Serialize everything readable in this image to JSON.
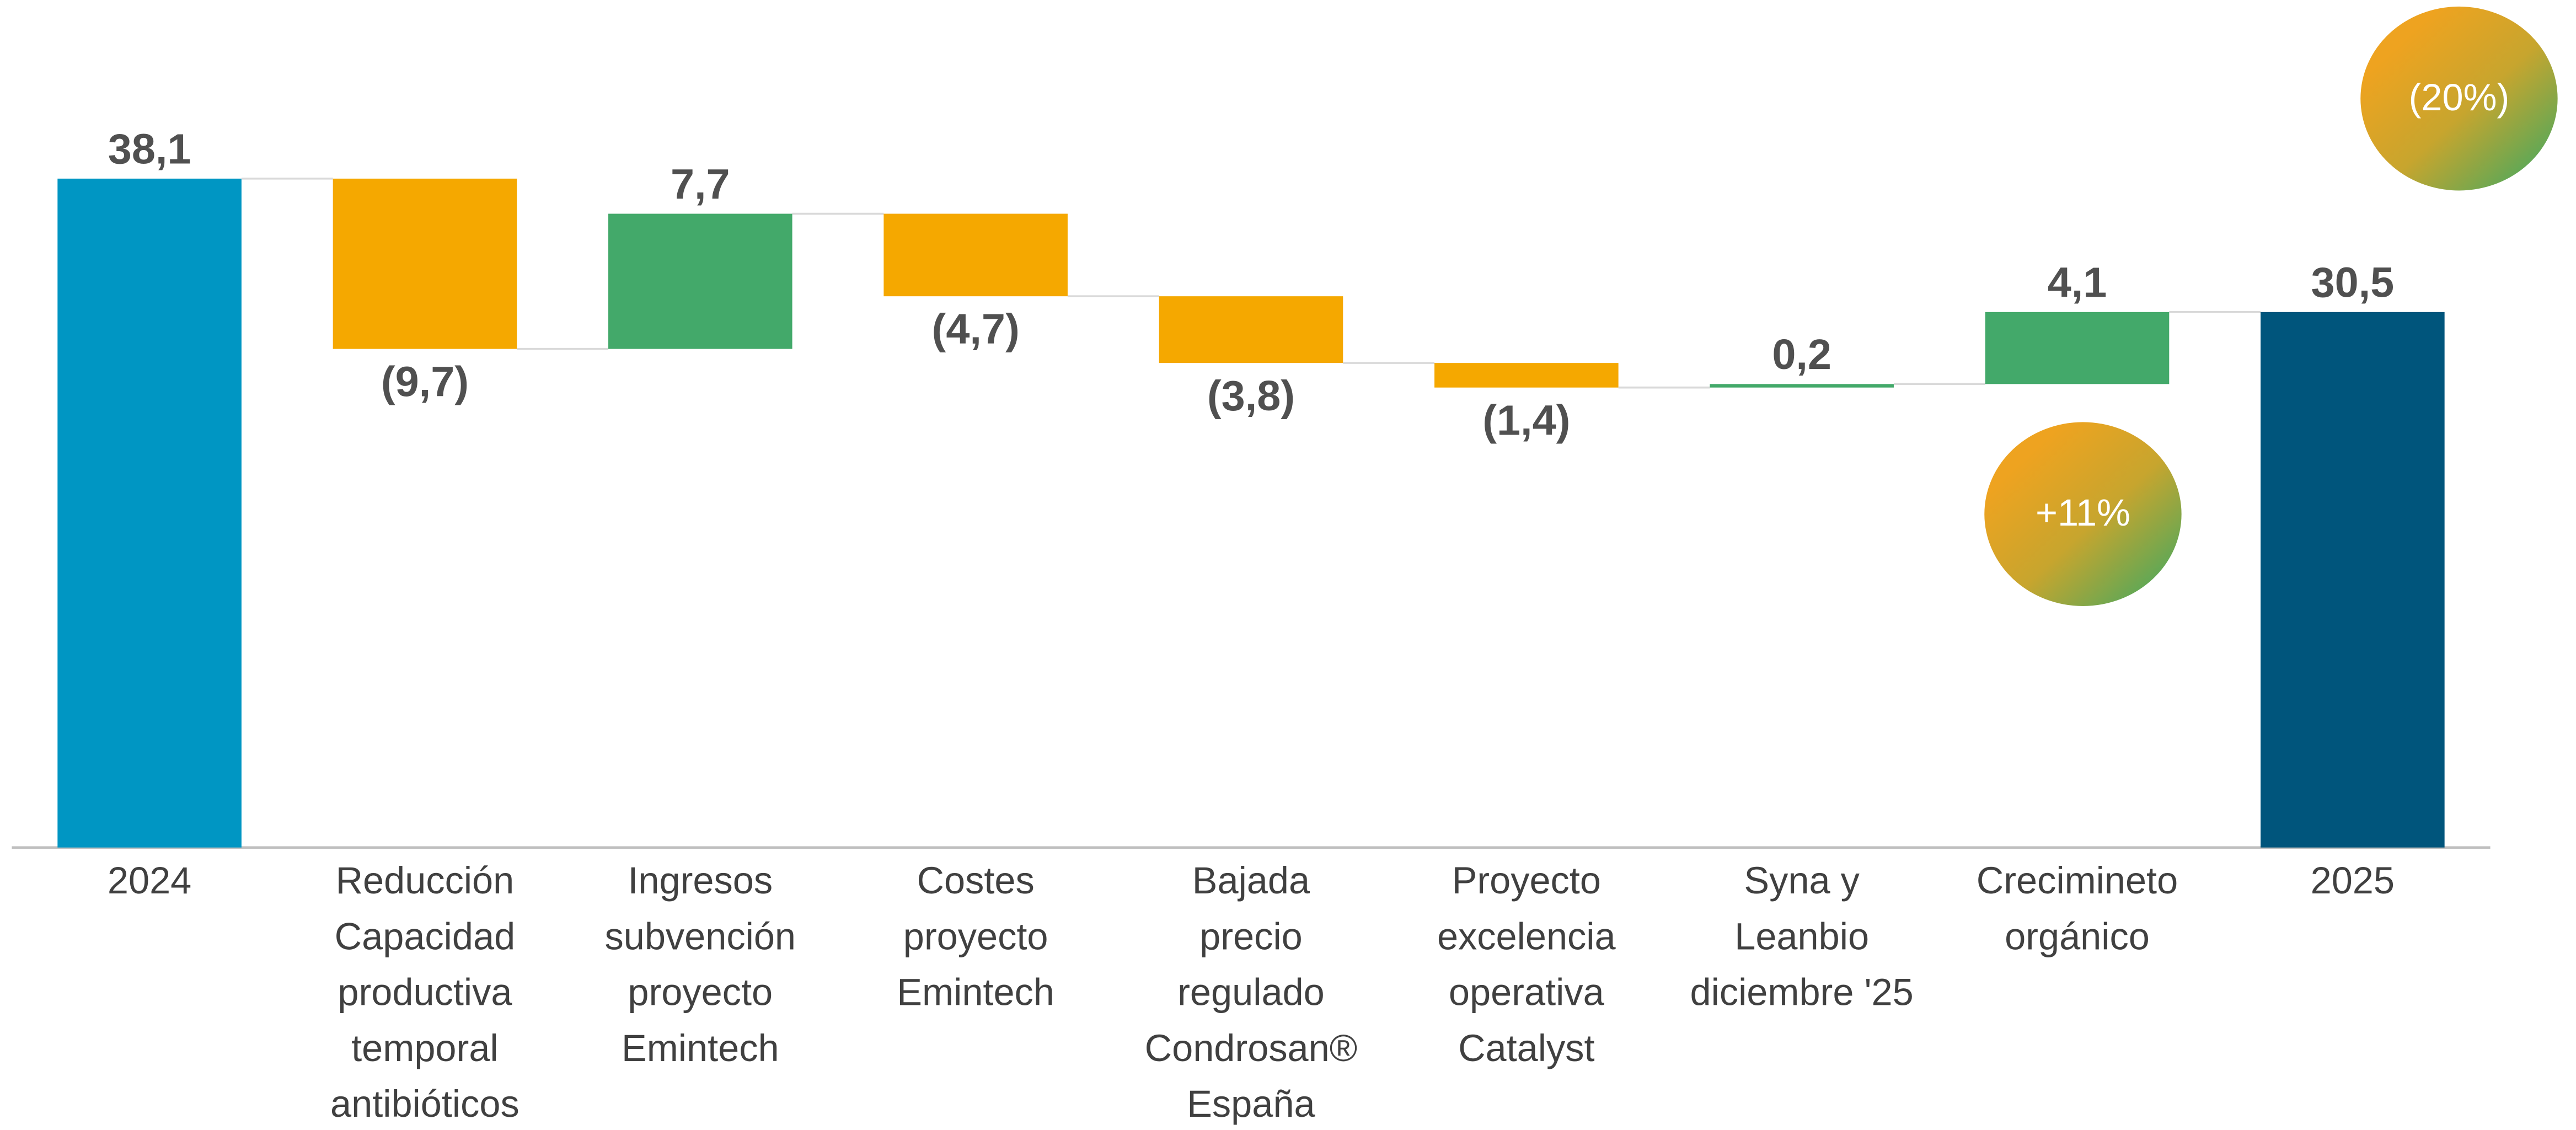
{
  "chart_data": {
    "type": "waterfall",
    "categories": [
      "2024",
      "Reducción\nCapacidad\nproductiva\ntemporal\nantibióticos",
      "Ingresos\nsubvención\nproyecto\nEmintech",
      "Costes\nproyecto\nEmintech",
      "Bajada\nprecio\nregulado\nCondrosan®\nEspaña",
      "Proyecto\nexcelencia\noperativa\nCatalyst",
      "Syna y\nLeanbio\ndiciembre '25",
      "Crecimineto\norgánico",
      "2025"
    ],
    "measure": [
      "total",
      "relative",
      "relative",
      "relative",
      "relative",
      "relative",
      "relative",
      "relative",
      "total"
    ],
    "values": [
      38.1,
      -9.7,
      7.7,
      -4.7,
      -3.8,
      -1.4,
      0.2,
      4.1,
      30.5
    ],
    "value_labels": [
      "38,1",
      "(9,7)",
      "7,7",
      "(4,7)",
      "(3,8)",
      "(1,4)",
      "0,2",
      "4,1",
      "30,5"
    ],
    "colors": [
      "#0096c3",
      "#f5a800",
      "#43a96a",
      "#f5a800",
      "#f5a800",
      "#f5a800",
      "#43a96a",
      "#43a96a",
      "#00557c"
    ],
    "ylim": [
      0,
      45
    ],
    "annotations": [
      {
        "text": "(20%)"
      },
      {
        "text": "+11%"
      }
    ]
  }
}
